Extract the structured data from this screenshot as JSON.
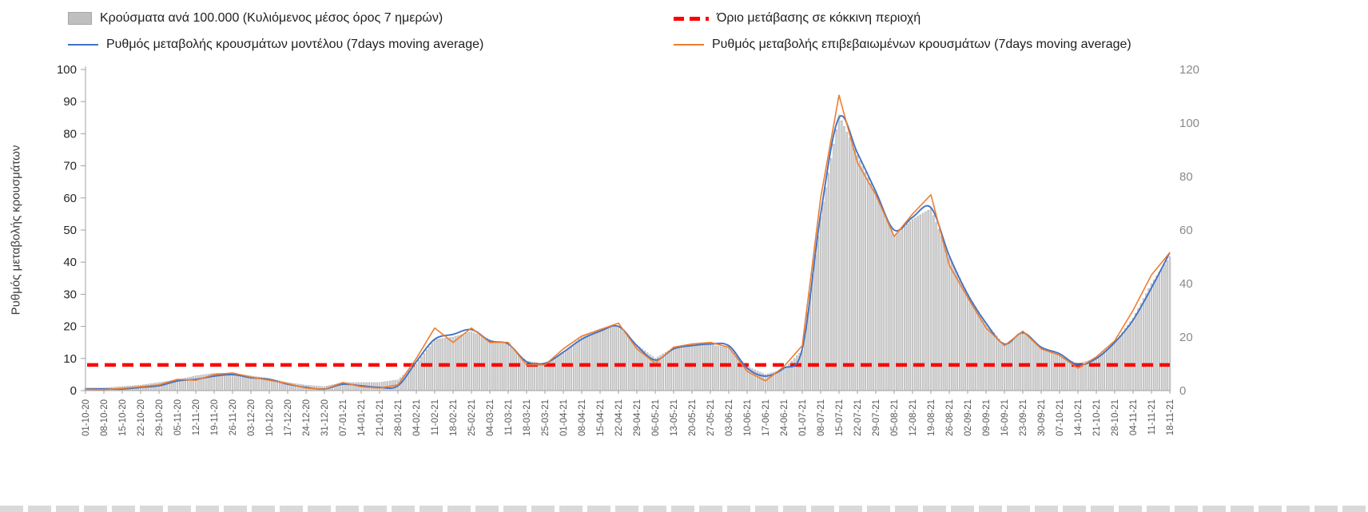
{
  "legend": {
    "bars": "Κρούσματα ανά 100.000 (Κυλιόμενος μέσος όρος 7 ημερών)",
    "threshold": "Όριο μετάβασης σε κόκκινη περιοχή",
    "model": "Ρυθμός μεταβολής κρουσμάτων μοντέλου (7days moving average)",
    "confirmed": "Ρυθμός μεταβολής επιβεβαιωμένων κρουσμάτων (7days moving average)"
  },
  "colors": {
    "bar_fill": "#d6d6d6",
    "bar_stroke": "#9b9b9b",
    "model_line": "#4472c4",
    "confirmed_line": "#ed7d31",
    "threshold_line": "#ff0000",
    "axis_line": "#a0a0a0",
    "left_tick_text": "#262626",
    "right_tick_text": "#8a8a8a",
    "x_tick_text": "#595959"
  },
  "chart_data": {
    "type": "line+bar",
    "title": "",
    "ylabel_left": "Ρυθμός μεταβολής κρουσμάτων",
    "left_axis": {
      "min": 0,
      "max": 100,
      "ticks": [
        0,
        10,
        20,
        30,
        40,
        50,
        60,
        70,
        80,
        90,
        100
      ]
    },
    "right_axis": {
      "min": 0,
      "max": 120,
      "ticks": [
        0,
        20,
        40,
        60,
        80,
        100,
        120
      ]
    },
    "threshold_left_value": 8,
    "grid": false,
    "legend_position": "top",
    "categories": [
      "01-10-20",
      "08-10-20",
      "15-10-20",
      "22-10-20",
      "29-10-20",
      "05-11-20",
      "12-11-20",
      "19-11-20",
      "26-11-20",
      "03-12-20",
      "10-12-20",
      "17-12-20",
      "24-12-20",
      "31-12-20",
      "07-01-21",
      "14-01-21",
      "21-01-21",
      "28-01-21",
      "04-02-21",
      "11-02-21",
      "18-02-21",
      "25-02-21",
      "04-03-21",
      "11-03-21",
      "18-03-21",
      "25-03-21",
      "01-04-21",
      "08-04-21",
      "15-04-21",
      "22-04-21",
      "29-04-21",
      "06-05-21",
      "13-05-21",
      "20-05-21",
      "27-05-21",
      "03-06-21",
      "10-06-21",
      "17-06-21",
      "24-06-21",
      "01-07-21",
      "08-07-21",
      "15-07-21",
      "22-07-21",
      "29-07-21",
      "05-08-21",
      "12-08-21",
      "19-08-21",
      "26-08-21",
      "02-09-21",
      "09-09-21",
      "16-09-21",
      "23-09-21",
      "30-09-21",
      "07-10-21",
      "14-10-21",
      "21-10-21",
      "28-10-21",
      "04-11-21",
      "11-11-21",
      "18-11-21"
    ],
    "series": [
      {
        "name": "Κρούσματα ανά 100.000 (Κυλιόμενος μέσος όρος 7 ημερών)",
        "type": "bar",
        "axis": "right",
        "values": [
          1,
          1,
          1.5,
          2,
          3,
          4,
          5.5,
          6.5,
          6.5,
          5.5,
          4.5,
          3,
          2,
          1.5,
          3,
          3,
          3,
          4,
          10,
          19,
          20,
          22,
          19,
          17,
          11,
          10,
          14,
          20,
          23,
          24,
          17,
          12,
          16,
          17,
          17,
          16,
          9,
          6,
          8,
          15,
          65,
          103,
          88,
          73,
          58,
          64,
          68,
          50,
          36,
          25,
          17,
          22,
          16,
          13,
          10,
          12,
          18,
          27,
          40,
          50
        ]
      },
      {
        "name": "Ρυθμός μεταβολής κρουσμάτων μοντέλου (7days moving average)",
        "type": "line",
        "axis": "left",
        "values": [
          0.5,
          0.5,
          0.5,
          1,
          1.5,
          3,
          3.5,
          4.5,
          5,
          4,
          3.5,
          2,
          1,
          0.5,
          2,
          1.5,
          1,
          1.5,
          9,
          16,
          17.5,
          19,
          15.5,
          14.5,
          9,
          8.5,
          12,
          16,
          18.5,
          20,
          14,
          9.5,
          13,
          14,
          14.5,
          14,
          7,
          4.5,
          7,
          13,
          55,
          85,
          74,
          62,
          50,
          54,
          57,
          42,
          30,
          21,
          14.5,
          18,
          13.5,
          11.5,
          8,
          10,
          15,
          22,
          32,
          43
        ]
      },
      {
        "name": "Ρυθμός μεταβολής επιβεβαιωμένων κρουσμάτων (7days moving average)",
        "type": "line",
        "axis": "left",
        "values": [
          0.4,
          0.3,
          0.7,
          1.2,
          1.8,
          3.5,
          3.2,
          5,
          5.5,
          4.2,
          3.2,
          2.2,
          0.8,
          0.4,
          2.5,
          1.2,
          0.8,
          1.8,
          10,
          19.5,
          15,
          19.5,
          15,
          15,
          8,
          8,
          13,
          17,
          19,
          21,
          13,
          8.5,
          13.5,
          14.5,
          15,
          13.5,
          6,
          3,
          7.5,
          14,
          60,
          92,
          71,
          61,
          48,
          55,
          61,
          39,
          29,
          19.5,
          14,
          18.5,
          13,
          11,
          7,
          10.5,
          15.5,
          25,
          36,
          43
        ]
      }
    ]
  }
}
